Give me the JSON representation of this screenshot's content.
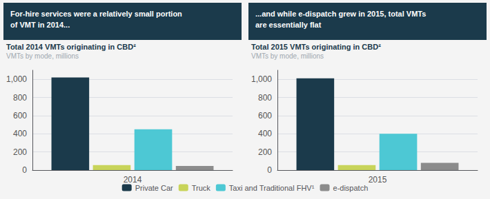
{
  "chart_data": [
    {
      "type": "bar",
      "annotation": "For-hire services were a relatively small portion\nof VMT in 2014...",
      "title": "Total 2014 VMTs originating in CBD²",
      "subtitle": "VMTs by mode, millions",
      "categories": [
        "2014"
      ],
      "series": [
        {
          "name": "Private Car",
          "color": "#1b3a4b",
          "values": [
            1020
          ]
        },
        {
          "name": "Truck",
          "color": "#c8d45a",
          "values": [
            55
          ]
        },
        {
          "name": "Taxi and Traditional FHV¹",
          "color": "#4dc8d4",
          "values": [
            450
          ]
        },
        {
          "name": "e-dispatch",
          "color": "#8c8c8c",
          "values": [
            45
          ]
        }
      ],
      "ylim": [
        0,
        1100
      ],
      "yticks": [
        0,
        200,
        400,
        600,
        800,
        {
          "value": 1000,
          "label": "1,000"
        }
      ],
      "grid": true,
      "legend": "bottom"
    },
    {
      "type": "bar",
      "annotation": "...and while e-dispatch grew in 2015, total VMTs\nare essentially flat",
      "title": "Total 2015 VMTs originating in CBD²",
      "subtitle": "VMTs by mode, millions",
      "categories": [
        "2015"
      ],
      "series": [
        {
          "name": "Private Car",
          "color": "#1b3a4b",
          "values": [
            1010
          ]
        },
        {
          "name": "Truck",
          "color": "#c8d45a",
          "values": [
            55
          ]
        },
        {
          "name": "Taxi and Traditional FHV¹",
          "color": "#4dc8d4",
          "values": [
            400
          ]
        },
        {
          "name": "e-dispatch",
          "color": "#8c8c8c",
          "values": [
            80
          ]
        }
      ],
      "ylim": [
        0,
        1100
      ],
      "yticks": [
        0,
        200,
        400,
        600,
        800,
        {
          "value": 1000,
          "label": "1,000"
        }
      ],
      "grid": true
    }
  ]
}
